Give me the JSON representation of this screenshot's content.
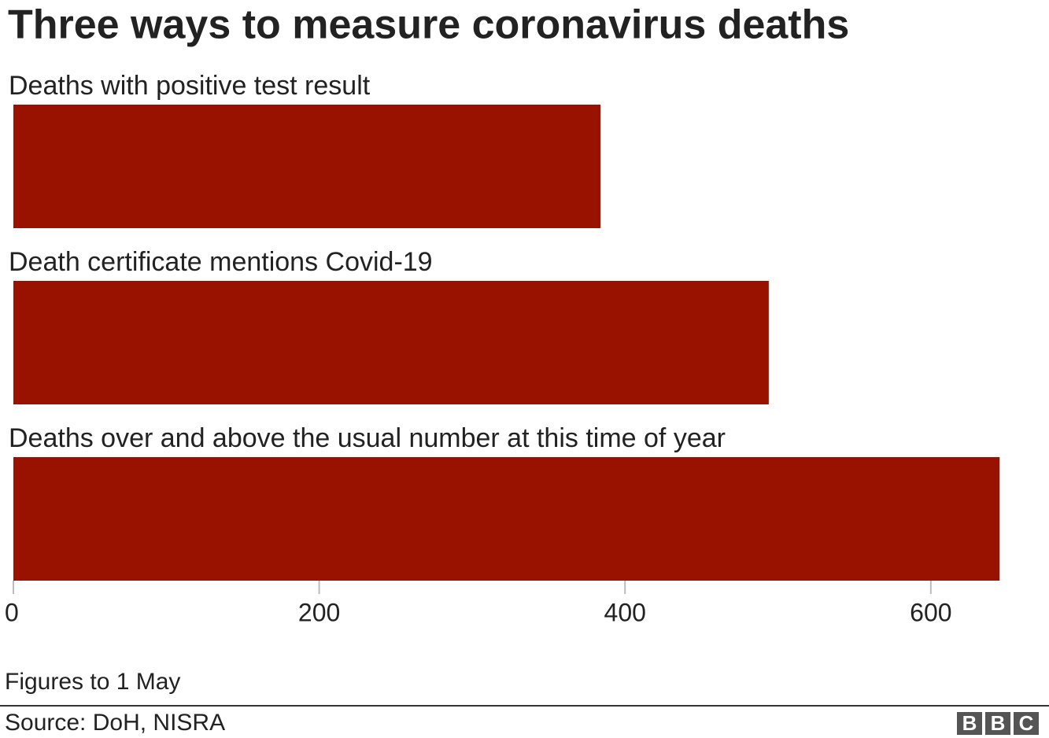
{
  "chart_data": {
    "type": "hbar",
    "title": "Three ways to measure coronavirus deaths",
    "categories": [
      "Deaths with positive test result",
      "Death certificate mentions Covid-19",
      "Deaths over and above the usual number at this time of year"
    ],
    "values": [
      384,
      494,
      645
    ],
    "color": "#991200",
    "xlim": [
      0,
      650
    ],
    "xticks": [
      0,
      200,
      400,
      600
    ],
    "note": "Figures to 1 May",
    "source": "Source: DoH, NISRA",
    "logo": [
      "B",
      "B",
      "C"
    ]
  }
}
